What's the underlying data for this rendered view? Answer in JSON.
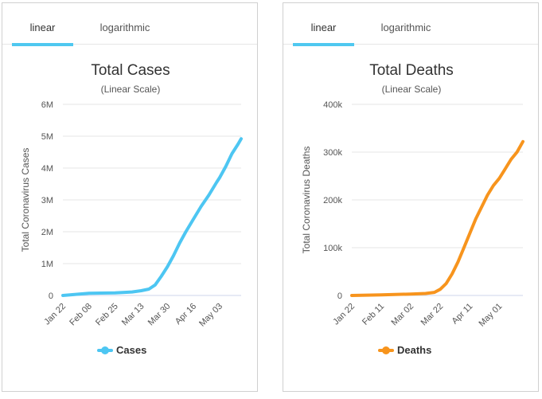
{
  "panels": [
    {
      "tabs": [
        {
          "label": "linear",
          "active": true
        },
        {
          "label": "logarithmic",
          "active": false
        }
      ],
      "accent_color": "#4fc8f0"
    },
    {
      "tabs": [
        {
          "label": "linear",
          "active": true
        },
        {
          "label": "logarithmic",
          "active": false
        }
      ],
      "accent_color": "#4fc8f0"
    }
  ],
  "chart_data": [
    {
      "type": "line",
      "title": "Total Cases",
      "subtitle": "(Linear Scale)",
      "xlabel": "",
      "ylabel": "Total Coronavirus Cases",
      "ylim": [
        0,
        6000000
      ],
      "y_ticks": [
        0,
        1000000,
        2000000,
        3000000,
        4000000,
        5000000,
        6000000
      ],
      "y_tick_labels": [
        "0",
        "1M",
        "2M",
        "3M",
        "4M",
        "5M",
        "6M"
      ],
      "x_tick_labels": [
        "Jan 22",
        "Feb 08",
        "Feb 25",
        "Mar 13",
        "Mar 30",
        "Apr 16",
        "May 03"
      ],
      "x_tick_days": [
        0,
        17,
        34,
        51,
        68,
        85,
        102
      ],
      "x_range_days": [
        0,
        116
      ],
      "grid": true,
      "legend": "bottom-center",
      "color": "#4dc6f2",
      "series": [
        {
          "name": "Cases",
          "x_days": [
            0,
            10,
            17,
            25,
            34,
            45,
            51,
            56,
            60,
            64,
            68,
            72,
            76,
            80,
            85,
            90,
            95,
            100,
            102,
            106,
            110,
            114,
            116
          ],
          "values": [
            600,
            40000,
            70000,
            75000,
            80000,
            110000,
            150000,
            200000,
            330000,
            600000,
            900000,
            1250000,
            1650000,
            2000000,
            2400000,
            2800000,
            3150000,
            3550000,
            3700000,
            4050000,
            4450000,
            4750000,
            4920000
          ]
        }
      ]
    },
    {
      "type": "line",
      "title": "Total Deaths",
      "subtitle": "(Linear Scale)",
      "xlabel": "",
      "ylabel": "Total Coronavirus Deaths",
      "ylim": [
        0,
        400000
      ],
      "y_ticks": [
        0,
        100000,
        200000,
        300000,
        400000
      ],
      "y_tick_labels": [
        "0",
        "100k",
        "200k",
        "300k",
        "400k"
      ],
      "x_tick_labels": [
        "Jan 22",
        "Feb 11",
        "Mar 02",
        "Mar 22",
        "Apr 11",
        "May 01"
      ],
      "x_tick_days": [
        0,
        20,
        40,
        60,
        80,
        100
      ],
      "x_range_days": [
        0,
        116
      ],
      "grid": true,
      "legend": "bottom-center",
      "color": "#f7941d",
      "series": [
        {
          "name": "Deaths",
          "x_days": [
            0,
            20,
            40,
            50,
            56,
            60,
            64,
            68,
            72,
            76,
            80,
            84,
            88,
            92,
            96,
            100,
            104,
            108,
            112,
            116
          ],
          "values": [
            17,
            1100,
            3000,
            4200,
            6500,
            13000,
            25000,
            45000,
            70000,
            100000,
            130000,
            160000,
            185000,
            210000,
            230000,
            245000,
            265000,
            285000,
            300000,
            322000
          ]
        }
      ]
    }
  ]
}
